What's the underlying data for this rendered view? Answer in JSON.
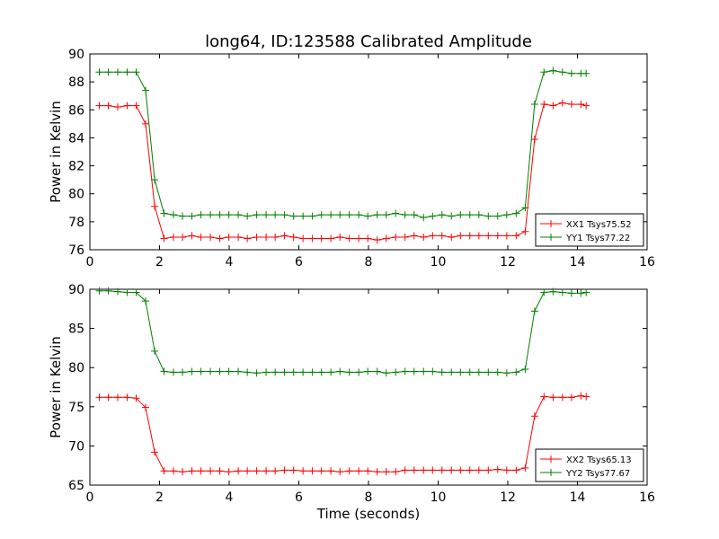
{
  "chart_data": {
    "type": "line",
    "title": "long64, ID:123588 Calibrated Amplitude",
    "x": [
      0.27,
      0.53,
      0.8,
      1.07,
      1.33,
      1.6,
      1.86,
      2.13,
      2.4,
      2.66,
      2.93,
      3.19,
      3.46,
      3.73,
      3.99,
      4.26,
      4.52,
      4.79,
      5.06,
      5.32,
      5.59,
      5.85,
      6.12,
      6.39,
      6.65,
      6.92,
      7.18,
      7.45,
      7.72,
      7.98,
      8.25,
      8.51,
      8.78,
      9.05,
      9.31,
      9.58,
      9.84,
      10.11,
      10.38,
      10.64,
      10.91,
      11.17,
      11.44,
      11.71,
      11.97,
      12.24,
      12.5,
      12.77,
      13.04,
      13.3,
      13.57,
      13.83,
      14.1,
      14.25
    ],
    "panels": [
      {
        "ylabel": "Power in Kelvin",
        "xlabel": "",
        "xlim": [
          0,
          16
        ],
        "ylim": [
          76,
          90
        ],
        "xticks": [
          "0",
          "2",
          "4",
          "6",
          "8",
          "10",
          "12",
          "14",
          "16"
        ],
        "yticks": [
          "76",
          "78",
          "80",
          "82",
          "84",
          "86",
          "88",
          "90"
        ],
        "legend_position": "lower-right",
        "series": [
          {
            "name": "XX1 Tsys75.52",
            "color": "#ff0000",
            "values": [
              86.3,
              86.3,
              86.2,
              86.3,
              86.3,
              85.0,
              79.1,
              76.8,
              76.9,
              76.9,
              77.0,
              76.9,
              76.9,
              76.8,
              76.9,
              76.9,
              76.8,
              76.9,
              76.9,
              76.9,
              77.0,
              76.9,
              76.8,
              76.8,
              76.8,
              76.8,
              76.9,
              76.8,
              76.8,
              76.8,
              76.7,
              76.8,
              76.9,
              76.9,
              77.0,
              76.9,
              77.0,
              77.0,
              76.9,
              77.0,
              77.0,
              77.0,
              77.0,
              77.0,
              77.0,
              77.0,
              77.3,
              83.9,
              86.4,
              86.3,
              86.5,
              86.4,
              86.4,
              86.3
            ]
          },
          {
            "name": "YY1 Tsys77.22",
            "color": "#008000",
            "values": [
              88.7,
              88.7,
              88.7,
              88.7,
              88.7,
              87.4,
              81.0,
              78.6,
              78.5,
              78.4,
              78.4,
              78.5,
              78.5,
              78.5,
              78.5,
              78.5,
              78.4,
              78.5,
              78.5,
              78.5,
              78.5,
              78.4,
              78.4,
              78.4,
              78.5,
              78.5,
              78.5,
              78.5,
              78.5,
              78.4,
              78.5,
              78.5,
              78.6,
              78.5,
              78.5,
              78.3,
              78.4,
              78.5,
              78.4,
              78.5,
              78.5,
              78.5,
              78.4,
              78.4,
              78.5,
              78.6,
              79.0,
              86.4,
              88.7,
              88.8,
              88.7,
              88.6,
              88.6,
              88.6
            ]
          }
        ]
      },
      {
        "ylabel": "Power in Kelvin",
        "xlabel": "Time (seconds)",
        "xlim": [
          0,
          16
        ],
        "ylim": [
          65,
          90
        ],
        "xticks": [
          "0",
          "2",
          "4",
          "6",
          "8",
          "10",
          "12",
          "14",
          "16"
        ],
        "yticks": [
          "65",
          "70",
          "75",
          "80",
          "85",
          "90"
        ],
        "legend_position": "lower-right",
        "series": [
          {
            "name": "XX2 Tsys65.13",
            "color": "#ff0000",
            "values": [
              76.2,
              76.2,
              76.2,
              76.2,
              76.1,
              74.9,
              69.2,
              66.8,
              66.8,
              66.7,
              66.8,
              66.8,
              66.8,
              66.8,
              66.7,
              66.8,
              66.8,
              66.8,
              66.8,
              66.8,
              66.9,
              66.9,
              66.8,
              66.8,
              66.8,
              66.8,
              66.7,
              66.8,
              66.8,
              66.8,
              66.7,
              66.7,
              66.7,
              66.9,
              66.9,
              66.9,
              66.9,
              66.9,
              66.9,
              66.9,
              66.9,
              66.9,
              66.9,
              67.0,
              66.9,
              66.9,
              67.2,
              73.8,
              76.3,
              76.2,
              76.2,
              76.2,
              76.4,
              76.3
            ]
          },
          {
            "name": "YY2 Tsys77.67",
            "color": "#008000",
            "values": [
              89.8,
              89.8,
              89.7,
              89.6,
              89.6,
              88.5,
              82.1,
              79.5,
              79.4,
              79.4,
              79.5,
              79.5,
              79.5,
              79.5,
              79.5,
              79.5,
              79.4,
              79.3,
              79.4,
              79.4,
              79.4,
              79.4,
              79.4,
              79.4,
              79.4,
              79.4,
              79.5,
              79.4,
              79.4,
              79.5,
              79.5,
              79.3,
              79.4,
              79.5,
              79.5,
              79.5,
              79.5,
              79.4,
              79.4,
              79.4,
              79.4,
              79.4,
              79.4,
              79.4,
              79.3,
              79.4,
              79.8,
              87.2,
              89.6,
              89.7,
              89.6,
              89.5,
              89.5,
              89.6
            ]
          }
        ]
      }
    ]
  }
}
